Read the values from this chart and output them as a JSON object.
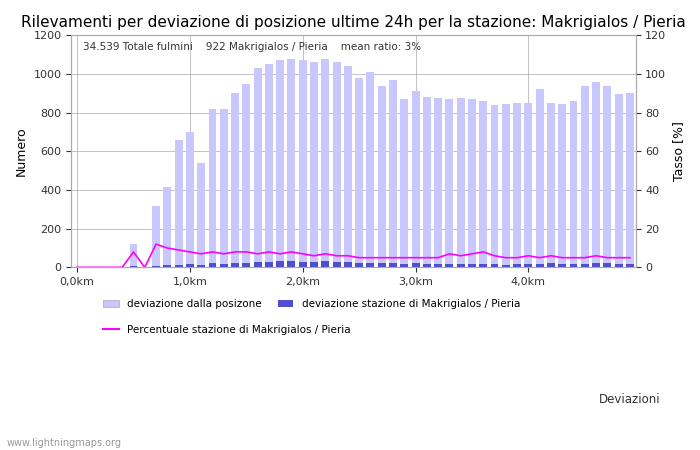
{
  "title": "Rilevamenti per deviazione di posizione ultime 24h per la stazione: Makrigialos / Pieria",
  "subtitle": "34.539 Totale fulmini    922 Makrigialos / Pieria    mean ratio: 3%",
  "xlabel_text": "Deviazioni",
  "ylabel_left": "Numero",
  "ylabel_right": "Tasso [%]",
  "watermark": "www.lightningmaps.org",
  "ylim_left": [
    0,
    1200
  ],
  "ylim_right": [
    0,
    120
  ],
  "xtick_labels": [
    "0,0km",
    "1,0km",
    "2,0km",
    "3,0km",
    "4,0km"
  ],
  "ytick_left": [
    0,
    200,
    400,
    600,
    800,
    1000,
    1200
  ],
  "ytick_right": [
    0,
    20,
    40,
    60,
    80,
    100,
    120
  ],
  "bar_color_light": "#c8c8ff",
  "bar_color_dark": "#5050cc",
  "line_color": "#ff00ff",
  "bar_width": 0.7,
  "bar_values_light": [
    0,
    0,
    0,
    0,
    0,
    120,
    0,
    315,
    415,
    660,
    700,
    540,
    820,
    820,
    900,
    950,
    1030,
    1050,
    1070,
    1080,
    1070,
    1060,
    1080,
    1060,
    1040,
    980,
    1010,
    940,
    970,
    870,
    910,
    880,
    875,
    870,
    875,
    870,
    860,
    840,
    845,
    850,
    850,
    920,
    850,
    845,
    860,
    940,
    960,
    940,
    895,
    900
  ],
  "bar_values_dark": [
    0,
    0,
    0,
    0,
    0,
    5,
    0,
    8,
    10,
    12,
    15,
    12,
    20,
    18,
    22,
    25,
    28,
    30,
    32,
    35,
    30,
    28,
    32,
    30,
    28,
    22,
    25,
    20,
    22,
    18,
    20,
    18,
    16,
    18,
    16,
    18,
    16,
    15,
    14,
    16,
    15,
    16,
    20,
    18,
    16,
    18,
    22,
    20,
    18,
    16
  ],
  "line_values": [
    0,
    0,
    0,
    0,
    0,
    8,
    0,
    12,
    10,
    9,
    8,
    7,
    8,
    7,
    8,
    8,
    7,
    8,
    7,
    8,
    7,
    6,
    7,
    6,
    6,
    5,
    5,
    5,
    5,
    5,
    5,
    5,
    5,
    7,
    6,
    7,
    8,
    6,
    5,
    5,
    6,
    5,
    6,
    5,
    5,
    5,
    6,
    5,
    5,
    5
  ],
  "legend_label_light": "deviazione dalla posizone",
  "legend_label_dark": "deviazione stazione di Makrigialos / Pieria",
  "legend_label_line": "Percentuale stazione di Makrigialos / Pieria",
  "background_color": "#ffffff",
  "grid_color": "#aaaaaa",
  "title_fontsize": 11,
  "axis_fontsize": 9,
  "tick_fontsize": 8
}
